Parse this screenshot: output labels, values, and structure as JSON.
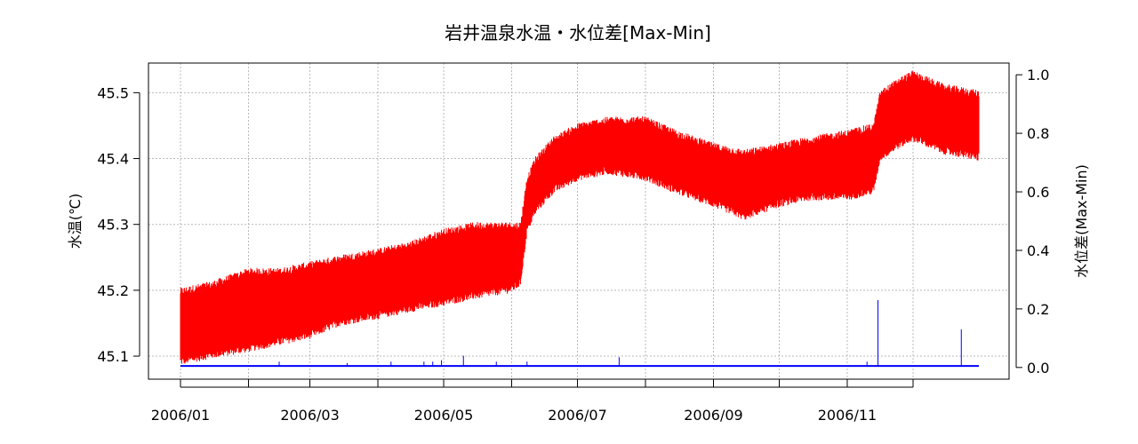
{
  "chart_data": {
    "type": "line",
    "title": "岩井温泉水温・水位差[Max-Min]",
    "ylabel": "水温(℃)",
    "y2label": "水位差(Max-Min)",
    "x_range": [
      "2006/01/01",
      "2006/12/31"
    ],
    "ylim": [
      45.065,
      45.545
    ],
    "y2lim": [
      -0.04,
      1.04
    ],
    "x_ticks": [
      "2006/01/01",
      "2006/02/01",
      "2006/03/01",
      "2006/04/01",
      "2006/05/01",
      "2006/06/01",
      "2006/07/01",
      "2006/08/01",
      "2006/09/01",
      "2006/10/01",
      "2006/11/01",
      "2006/12/01"
    ],
    "x_tick_labels": [
      {
        "date": "2006/01/01",
        "label": "2006/01"
      },
      {
        "date": "2006/03/01",
        "label": "2006/03"
      },
      {
        "date": "2006/05/01",
        "label": "2006/05"
      },
      {
        "date": "2006/07/01",
        "label": "2006/07"
      },
      {
        "date": "2006/09/01",
        "label": "2006/09"
      },
      {
        "date": "2006/11/01",
        "label": "2006/11"
      }
    ],
    "y_ticks": [
      45.1,
      45.2,
      45.3,
      45.4,
      45.5
    ],
    "y_tick_labels": [
      "45.1",
      "45.2",
      "45.3",
      "45.4",
      "45.5"
    ],
    "y2_ticks": [
      0.0,
      0.2,
      0.4,
      0.6,
      0.8,
      1.0
    ],
    "y2_tick_labels": [
      "0.0",
      "0.2",
      "0.4",
      "0.6",
      "0.8",
      "1.0"
    ],
    "grid": true,
    "series": [
      {
        "axis": "left",
        "color": "#ff0000",
        "band": [
          {
            "date": "2006/01/01",
            "low": 45.09,
            "high": 45.2
          },
          {
            "date": "2006/01/15",
            "low": 45.1,
            "high": 45.21
          },
          {
            "date": "2006/02/01",
            "low": 45.11,
            "high": 45.23
          },
          {
            "date": "2006/02/15",
            "low": 45.12,
            "high": 45.23
          },
          {
            "date": "2006/03/01",
            "low": 45.13,
            "high": 45.24
          },
          {
            "date": "2006/03/15",
            "low": 45.15,
            "high": 45.25
          },
          {
            "date": "2006/04/01",
            "low": 45.16,
            "high": 45.26
          },
          {
            "date": "2006/04/15",
            "low": 45.17,
            "high": 45.27
          },
          {
            "date": "2006/05/01",
            "low": 45.18,
            "high": 45.29
          },
          {
            "date": "2006/05/15",
            "low": 45.19,
            "high": 45.3
          },
          {
            "date": "2006/06/01",
            "low": 45.2,
            "high": 45.3
          },
          {
            "date": "2006/06/05",
            "low": 45.21,
            "high": 45.3
          },
          {
            "date": "2006/06/08",
            "low": 45.29,
            "high": 45.37
          },
          {
            "date": "2006/06/12",
            "low": 45.32,
            "high": 45.4
          },
          {
            "date": "2006/06/20",
            "low": 45.35,
            "high": 45.43
          },
          {
            "date": "2006/07/01",
            "low": 45.37,
            "high": 45.45
          },
          {
            "date": "2006/07/15",
            "low": 45.38,
            "high": 45.46
          },
          {
            "date": "2006/08/01",
            "low": 45.37,
            "high": 45.46
          },
          {
            "date": "2006/08/15",
            "low": 45.35,
            "high": 45.44
          },
          {
            "date": "2006/09/01",
            "low": 45.33,
            "high": 45.42
          },
          {
            "date": "2006/09/15",
            "low": 45.31,
            "high": 45.41
          },
          {
            "date": "2006/10/01",
            "low": 45.33,
            "high": 45.42
          },
          {
            "date": "2006/10/15",
            "low": 45.34,
            "high": 45.43
          },
          {
            "date": "2006/11/01",
            "low": 45.34,
            "high": 45.44
          },
          {
            "date": "2006/11/13",
            "low": 45.35,
            "high": 45.45
          },
          {
            "date": "2006/11/16",
            "low": 45.4,
            "high": 45.5
          },
          {
            "date": "2006/11/25",
            "low": 45.42,
            "high": 45.52
          },
          {
            "date": "2006/12/01",
            "low": 45.43,
            "high": 45.53
          },
          {
            "date": "2006/12/15",
            "low": 45.41,
            "high": 45.51
          },
          {
            "date": "2006/12/31",
            "low": 45.4,
            "high": 45.5
          }
        ]
      },
      {
        "axis": "right",
        "color": "#0000ff",
        "baseline": 0.005,
        "spikes": [
          {
            "date": "2006/02/15",
            "value": 0.02
          },
          {
            "date": "2006/03/18",
            "value": 0.015
          },
          {
            "date": "2006/04/07",
            "value": 0.02
          },
          {
            "date": "2006/04/22",
            "value": 0.02
          },
          {
            "date": "2006/04/26",
            "value": 0.02
          },
          {
            "date": "2006/04/30",
            "value": 0.025
          },
          {
            "date": "2006/05/10",
            "value": 0.04
          },
          {
            "date": "2006/05/25",
            "value": 0.02
          },
          {
            "date": "2006/06/08",
            "value": 0.02
          },
          {
            "date": "2006/07/20",
            "value": 0.035
          },
          {
            "date": "2006/11/10",
            "value": 0.02
          },
          {
            "date": "2006/11/15",
            "value": 0.23
          },
          {
            "date": "2006/12/23",
            "value": 0.13
          }
        ]
      }
    ]
  }
}
